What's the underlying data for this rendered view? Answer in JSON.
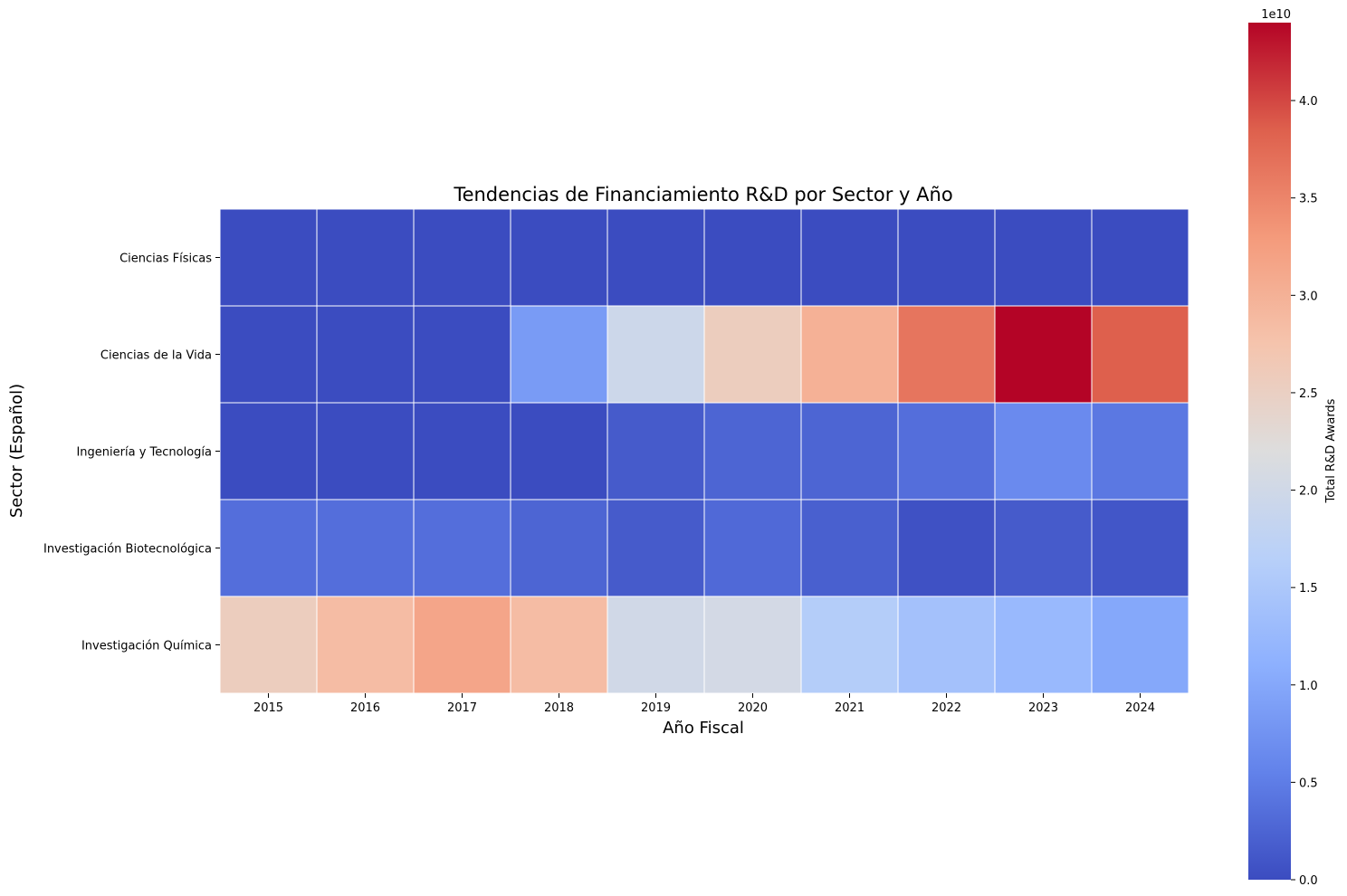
{
  "chart_data": {
    "type": "heatmap",
    "title": "Tendencias de Financiamiento R&D por Sector y Año",
    "xlabel": "Año Fiscal",
    "ylabel": "Sector (Español)",
    "x": [
      "2015",
      "2016",
      "2017",
      "2018",
      "2019",
      "2020",
      "2021",
      "2022",
      "2023",
      "2024"
    ],
    "y": [
      "Ciencias Físicas",
      "Ciencias de la Vida",
      "Ingeniería y Tecnología",
      "Investigación Biotecnológica",
      "Investigación Química"
    ],
    "values": [
      [
        0.0,
        0.0,
        0.0,
        0.0,
        0.0,
        0.0,
        0.0,
        0.0,
        0.0,
        0.0
      ],
      [
        0.0,
        0.0,
        0.0,
        8500000000.0,
        19500000000.0,
        25500000000.0,
        30000000000.0,
        36500000000.0,
        44000000000.0,
        38500000000.0
      ],
      [
        0.0,
        0.0,
        0.0,
        0.0,
        1500000000.0,
        2500000000.0,
        2500000000.0,
        3500000000.0,
        6500000000.0,
        4500000000.0
      ],
      [
        3500000000.0,
        3500000000.0,
        3500000000.0,
        2500000000.0,
        1500000000.0,
        3000000000.0,
        2000000000.0,
        500000000.0,
        1500000000.0,
        1000000000.0
      ],
      [
        25500000000.0,
        28500000000.0,
        31500000000.0,
        28500000000.0,
        20000000000.0,
        20500000000.0,
        16000000000.0,
        14000000000.0,
        12500000000.0,
        10000000000.0
      ]
    ],
    "colorscale": "coolwarm",
    "colorbar": {
      "label": "Total R&D Awards",
      "multiplier": "1e10",
      "range": [
        0,
        4.4
      ],
      "ticks": [
        "0.0",
        "0.5",
        "1.0",
        "1.5",
        "2.0",
        "2.5",
        "3.0",
        "3.5",
        "4.0"
      ]
    }
  }
}
